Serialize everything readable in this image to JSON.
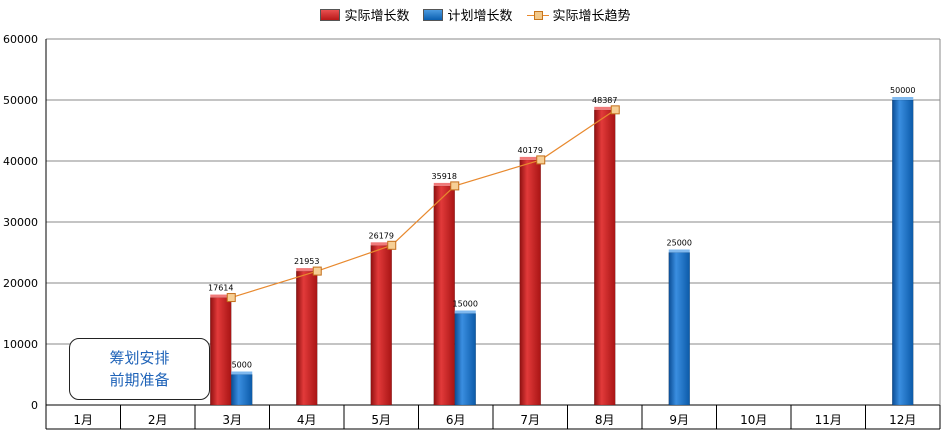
{
  "legend": {
    "actual": "实际增长数",
    "plan": "计划增长数",
    "trend": "实际增长趋势"
  },
  "note": {
    "line1": "筹划安排",
    "line2": "前期准备"
  },
  "colors": {
    "actual": "#cc2222",
    "plan": "#1a6fc4",
    "trend": "#e8892e"
  },
  "chart_data": {
    "type": "bar",
    "categories": [
      "1月",
      "2月",
      "3月",
      "4月",
      "5月",
      "6月",
      "7月",
      "8月",
      "9月",
      "10月",
      "11月",
      "12月"
    ],
    "series": [
      {
        "name": "实际增长数",
        "type": "bar",
        "values": [
          null,
          null,
          17614,
          21953,
          26179,
          35918,
          40179,
          48387,
          null,
          null,
          null,
          null
        ]
      },
      {
        "name": "计划增长数",
        "type": "bar",
        "values": [
          null,
          null,
          5000,
          null,
          null,
          15000,
          null,
          null,
          25000,
          null,
          null,
          50000
        ]
      },
      {
        "name": "实际增长趋势",
        "type": "line",
        "values": [
          null,
          null,
          17614,
          21953,
          26179,
          35918,
          40179,
          48387,
          null,
          null,
          null,
          null
        ]
      }
    ],
    "yticks": [
      "0",
      "10000",
      "20000",
      "30000",
      "40000",
      "50000",
      "60000"
    ],
    "ylim": [
      0,
      60000
    ],
    "grid": true,
    "legend_position": "top"
  }
}
